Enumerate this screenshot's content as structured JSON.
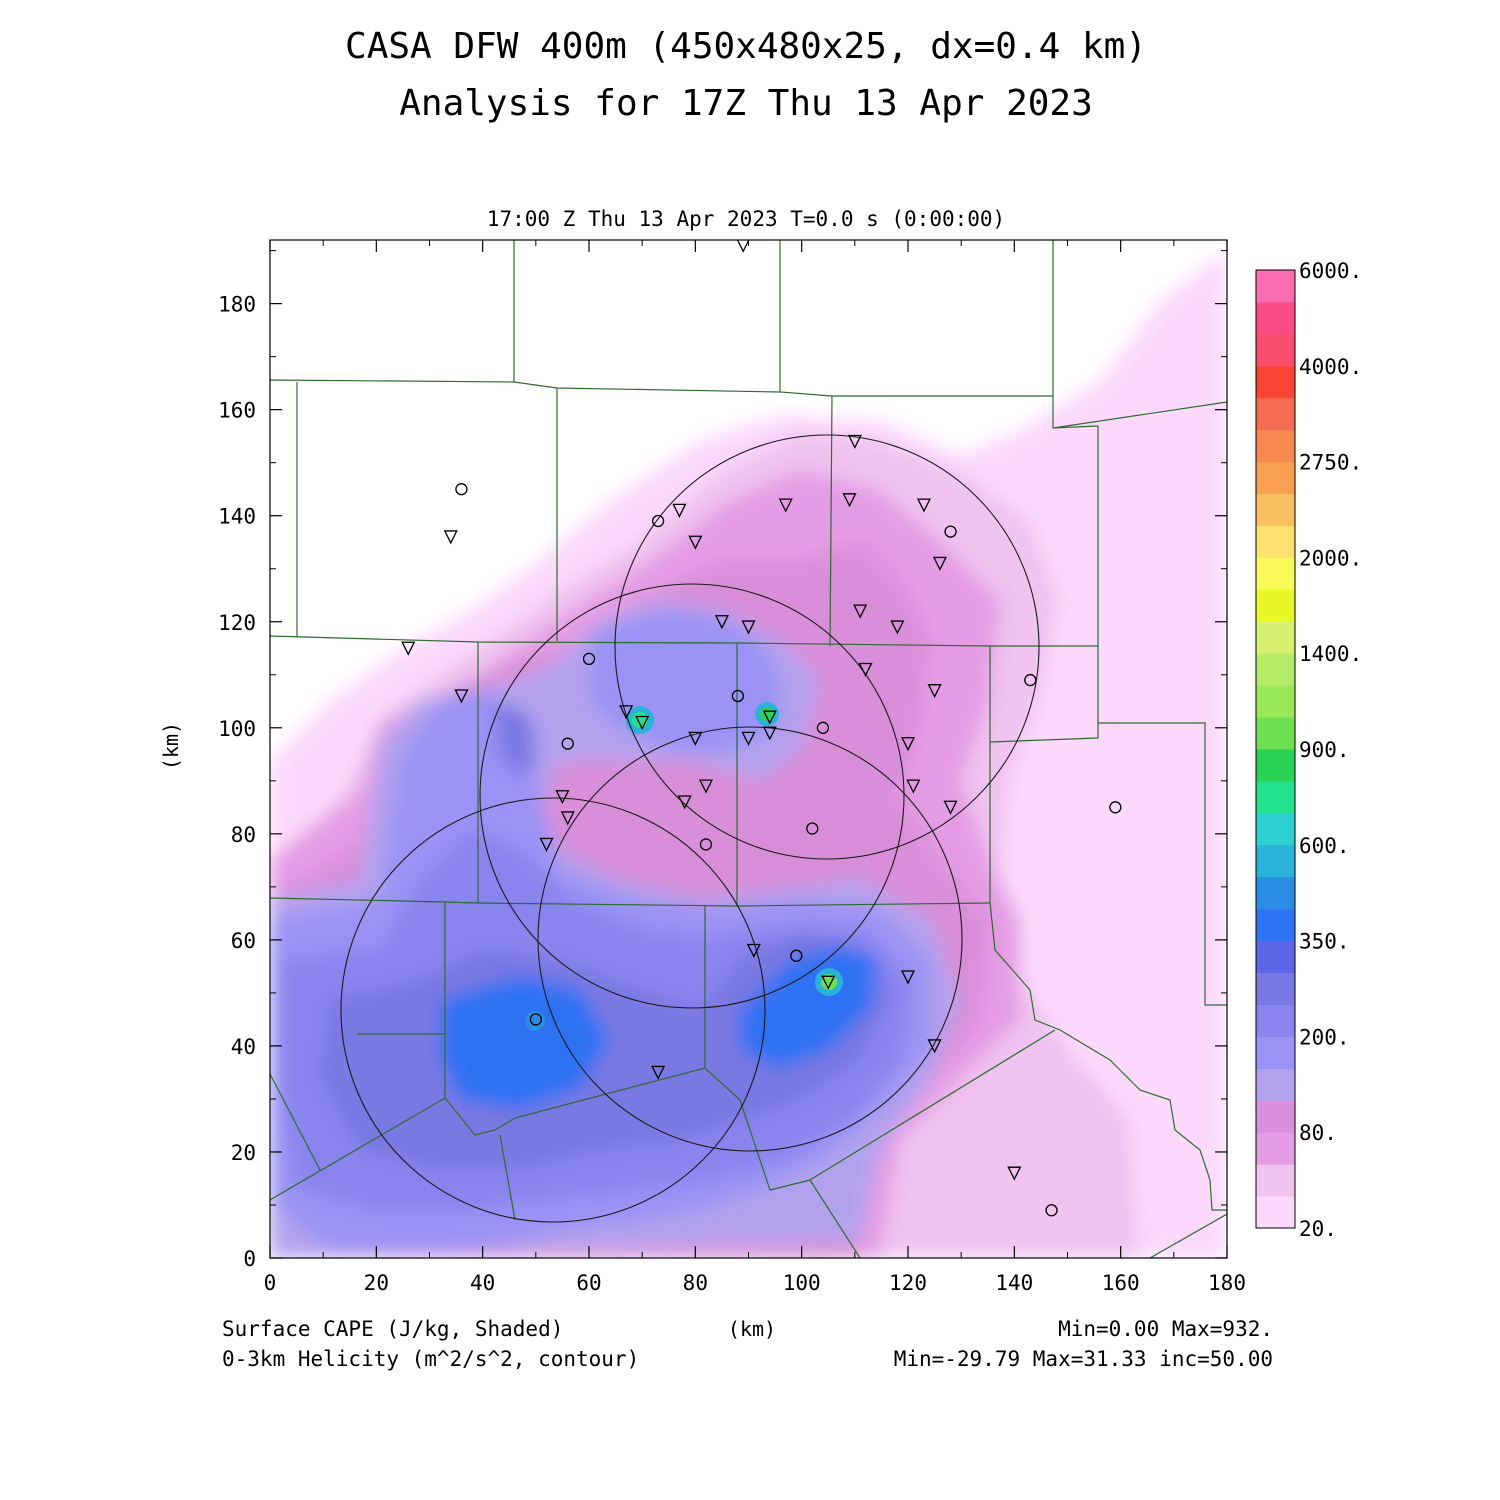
{
  "figure": {
    "title_line1": "CASA DFW 400m (450x480x25, dx=0.4 km)",
    "title_line2": "Analysis for 17Z Thu 13 Apr 2023",
    "timestamp": "17:00 Z Thu 13 Apr 2023   T=0.0 s (0:00:00)",
    "shaded_label": "Surface CAPE (J/kg, Shaded)",
    "contour_label": "0-3km Helicity (m^2/s^2, contour)",
    "units_label": "(km)",
    "shaded_stats": "Min=0.00 Max=932.",
    "contour_stats": "Min=-29.79 Max=31.33 inc=50.00"
  },
  "chart_data": {
    "type": "heatmap",
    "title": "CASA DFW 400m (450x480x25, dx=0.4 km)",
    "subtitle": "Analysis for 17Z Thu 13 Apr 2023",
    "xlabel": "(km)",
    "ylabel": "(km)",
    "xlim": [
      0,
      180
    ],
    "ylim": [
      0,
      192
    ],
    "x_ticks": [
      "0",
      "20",
      "40",
      "60",
      "80",
      "100",
      "120",
      "140",
      "160",
      "180"
    ],
    "y_ticks": [
      "0",
      "20",
      "40",
      "60",
      "80",
      "100",
      "120",
      "140",
      "160",
      "180"
    ],
    "colorbar": {
      "labels": [
        "20.",
        "80.",
        "200.",
        "350.",
        "600.",
        "900.",
        "1400.",
        "2000.",
        "2750.",
        "4000.",
        "6000."
      ],
      "colors": [
        "#fcd9fc",
        "#f0c3f0",
        "#e49ce4",
        "#d98ed9",
        "#b2a2ee",
        "#9a92f5",
        "#8a84ee",
        "#7a78e2",
        "#5e66e8",
        "#2f72f4",
        "#2a8ee6",
        "#2ab2d8",
        "#2cd0d0",
        "#22e08c",
        "#2ad254",
        "#6ee050",
        "#98e85a",
        "#b4ec68",
        "#d8f070",
        "#e8f824",
        "#fafa5a",
        "#fce070",
        "#f8c060",
        "#f8a050",
        "#f88850",
        "#f46c52",
        "#f84432",
        "#fa4c6c",
        "#fc4c88",
        "#fc6cb0"
      ]
    },
    "radar_rings_center_km": [
      [
        105,
        116
      ],
      [
        79,
        87
      ],
      [
        89,
        63
      ],
      [
        54,
        47
      ]
    ],
    "radar_ring_radius_km": 40,
    "cape_max_points_km": [
      [
        69.6,
        101.7
      ],
      [
        93.9,
        102.6
      ],
      [
        105.3,
        52.1
      ],
      [
        49.5,
        44.5
      ]
    ],
    "stations_triangle_km": [
      [
        89,
        191
      ],
      [
        110,
        154
      ],
      [
        97,
        142
      ],
      [
        77,
        141
      ],
      [
        109,
        143
      ],
      [
        123,
        142
      ],
      [
        80,
        135
      ],
      [
        126,
        131
      ],
      [
        34,
        136
      ],
      [
        111,
        122
      ],
      [
        118,
        119
      ],
      [
        85,
        120
      ],
      [
        90,
        119
      ],
      [
        26,
        115
      ],
      [
        112,
        111
      ],
      [
        125,
        107
      ],
      [
        36,
        106
      ],
      [
        67,
        103
      ],
      [
        70,
        101
      ],
      [
        94,
        102
      ],
      [
        94,
        99
      ],
      [
        80,
        98
      ],
      [
        90,
        98
      ],
      [
        120,
        97
      ],
      [
        82,
        89
      ],
      [
        121,
        89
      ],
      [
        78,
        86
      ],
      [
        55,
        87
      ],
      [
        56,
        83
      ],
      [
        128,
        85
      ],
      [
        52,
        78
      ],
      [
        91,
        58
      ],
      [
        105,
        52
      ],
      [
        120,
        53
      ],
      [
        125,
        40
      ],
      [
        73,
        35
      ],
      [
        140,
        16
      ]
    ],
    "stations_circle_km": [
      [
        36,
        145
      ],
      [
        73,
        139
      ],
      [
        128,
        137
      ],
      [
        60,
        113
      ],
      [
        143,
        109
      ],
      [
        88,
        106
      ],
      [
        104,
        100
      ],
      [
        56,
        97
      ],
      [
        159,
        85
      ],
      [
        102,
        81
      ],
      [
        82,
        78
      ],
      [
        99,
        57
      ],
      [
        50,
        45
      ],
      [
        147,
        9
      ]
    ]
  }
}
